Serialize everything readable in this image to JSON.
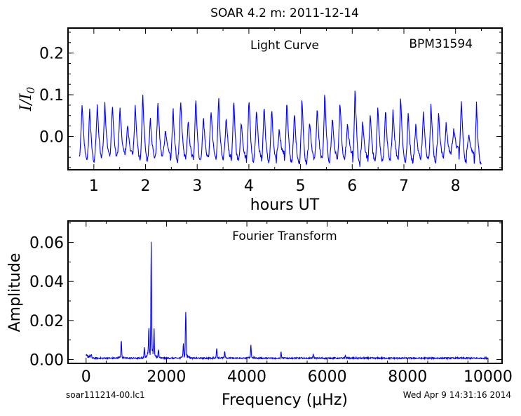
{
  "figure": {
    "title": "SOAR 4.2 m:  2011-12-14",
    "left_footer": "soar111214-00.lc1",
    "right_footer": "Wed Apr  9 14:31:16 2014"
  },
  "chart_data": [
    {
      "type": "line",
      "title": "Light Curve",
      "annotation": "BPM31594",
      "xlabel": "hours UT",
      "ylabel": "I/I0",
      "xlim": [
        0.5,
        8.9
      ],
      "ylim": [
        -0.08,
        0.26
      ],
      "xticks": [
        1,
        2,
        3,
        4,
        5,
        6,
        7,
        8
      ],
      "yticks": [
        0.0,
        0.1,
        0.2
      ],
      "ytick_labels": [
        "0.0",
        "0.1",
        "0.2"
      ],
      "series_color": "#0000ff",
      "x_start": 0.72,
      "x_end": 8.5,
      "peaks": [
        0.08,
        0.07,
        0.08,
        0.08,
        0.08,
        0.07,
        0.03,
        0.08,
        0.11,
        0.05,
        0.09,
        0.02,
        0.07,
        0.09,
        0.04,
        0.1,
        0.05,
        0.07,
        0.1,
        0.05,
        0.09,
        0.04,
        0.1,
        0.07,
        0.08,
        0.07,
        0.02,
        0.09,
        0.06,
        0.1,
        0.04,
        0.07,
        0.11,
        0.05,
        0.09,
        0.03,
        0.12,
        0.04,
        0.06,
        0.08,
        0.07,
        0.07,
        0.1,
        0.06,
        0.03,
        0.06,
        0.08,
        0.06,
        0.03,
        0.02,
        0.09,
        0.01,
        0.08
      ],
      "troughs": [
        -0.05,
        -0.06,
        -0.05,
        -0.04,
        -0.05,
        -0.04,
        -0.04,
        -0.05,
        -0.06,
        -0.05,
        -0.05,
        -0.04,
        -0.06,
        -0.05,
        -0.05,
        -0.06,
        -0.05,
        -0.05,
        -0.06,
        -0.05,
        -0.06,
        -0.05,
        -0.06,
        -0.05,
        -0.06,
        -0.06,
        -0.04,
        -0.06,
        -0.06,
        -0.07,
        -0.05,
        -0.05,
        -0.06,
        -0.05,
        -0.06,
        -0.04,
        -0.07,
        -0.05,
        -0.06,
        -0.06,
        -0.06,
        -0.05,
        -0.06,
        -0.06,
        -0.05,
        -0.05,
        -0.06,
        -0.05,
        -0.04,
        -0.03,
        -0.06,
        -0.04,
        -0.07
      ]
    },
    {
      "type": "line",
      "title": "Fourier Transform",
      "xlabel": "Frequency (μHz)",
      "ylabel": "Amplitude",
      "xlim": [
        -450,
        10350
      ],
      "ylim": [
        -0.002,
        0.071
      ],
      "xticks": [
        0,
        2000,
        4000,
        6000,
        8000,
        10000
      ],
      "yticks": [
        0.0,
        0.02,
        0.04,
        0.06
      ],
      "ytick_labels": [
        "0.00",
        "0.02",
        "0.04",
        "0.06"
      ],
      "series_color": "#0000ff",
      "x_range": [
        0,
        10000
      ],
      "noise_level": 0.0008,
      "peaks": [
        {
          "x": 875,
          "y": 0.0085
        },
        {
          "x": 1620,
          "y": 0.055
        },
        {
          "x": 1560,
          "y": 0.012
        },
        {
          "x": 1690,
          "y": 0.011
        },
        {
          "x": 1450,
          "y": 0.005
        },
        {
          "x": 1800,
          "y": 0.004
        },
        {
          "x": 2480,
          "y": 0.023
        },
        {
          "x": 2420,
          "y": 0.006
        },
        {
          "x": 3250,
          "y": 0.0045
        },
        {
          "x": 3450,
          "y": 0.0035
        },
        {
          "x": 4100,
          "y": 0.0065
        },
        {
          "x": 4850,
          "y": 0.0028
        },
        {
          "x": 5650,
          "y": 0.0018
        },
        {
          "x": 6450,
          "y": 0.0015
        }
      ]
    }
  ]
}
